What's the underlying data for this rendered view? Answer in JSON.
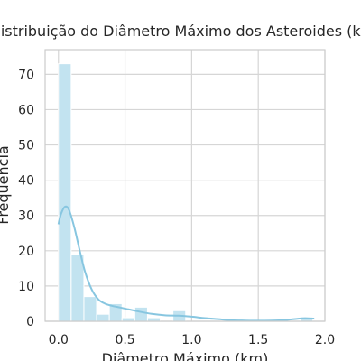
{
  "chart_data": {
    "type": "bar",
    "title": "Distribuição do Diâmetro Máximo dos Asteroides (km)",
    "xlabel": "Diâmetro Máximo (km)",
    "ylabel": "Frequência",
    "xlim": [
      -0.1,
      2.0
    ],
    "ylim": [
      0,
      77
    ],
    "xticks": [
      0.0,
      0.5,
      1.0,
      1.5,
      2.0
    ],
    "xtick_labels": [
      "0.0",
      "0.5",
      "1.0",
      "1.5",
      "2.0"
    ],
    "yticks": [
      0,
      10,
      20,
      30,
      40,
      50,
      60,
      70
    ],
    "ytick_labels": [
      "0",
      "10",
      "20",
      "30",
      "40",
      "50",
      "60",
      "70"
    ],
    "grid": true,
    "bar_color": "#c2e3f0",
    "kde_color": "#87c6e0",
    "bin_width": 0.0955,
    "bins": [
      {
        "x0": 0.0,
        "count": 73
      },
      {
        "x0": 0.0955,
        "count": 19
      },
      {
        "x0": 0.191,
        "count": 7
      },
      {
        "x0": 0.2865,
        "count": 2
      },
      {
        "x0": 0.382,
        "count": 5
      },
      {
        "x0": 0.4775,
        "count": 1
      },
      {
        "x0": 0.573,
        "count": 4
      },
      {
        "x0": 0.6685,
        "count": 1
      },
      {
        "x0": 0.764,
        "count": 0
      },
      {
        "x0": 0.8595,
        "count": 3
      },
      {
        "x0": 0.955,
        "count": 0
      },
      {
        "x0": 1.0505,
        "count": 0
      },
      {
        "x0": 1.146,
        "count": 0
      },
      {
        "x0": 1.2415,
        "count": 0
      },
      {
        "x0": 1.337,
        "count": 0
      },
      {
        "x0": 1.4325,
        "count": 0
      },
      {
        "x0": 1.528,
        "count": 0
      },
      {
        "x0": 1.6235,
        "count": 0
      },
      {
        "x0": 1.719,
        "count": 0
      },
      {
        "x0": 1.8145,
        "count": 1
      }
    ],
    "kde": {
      "x": [
        0.0,
        0.02,
        0.05,
        0.08,
        0.12,
        0.16,
        0.2,
        0.25,
        0.3,
        0.35,
        0.4,
        0.45,
        0.5,
        0.6,
        0.7,
        0.8,
        0.9,
        1.0,
        1.1,
        1.2,
        1.3,
        1.4,
        1.5,
        1.6,
        1.7,
        1.75,
        1.8,
        1.85,
        1.9,
        1.92
      ],
      "y": [
        27.5,
        30.5,
        32.5,
        31.5,
        26.5,
        20.0,
        14.0,
        9.0,
        6.2,
        5.0,
        4.4,
        4.0,
        3.6,
        2.8,
        2.1,
        1.7,
        1.6,
        1.3,
        0.9,
        0.6,
        0.3,
        0.2,
        0.15,
        0.2,
        0.35,
        0.55,
        0.75,
        0.85,
        0.8,
        0.75
      ]
    }
  }
}
